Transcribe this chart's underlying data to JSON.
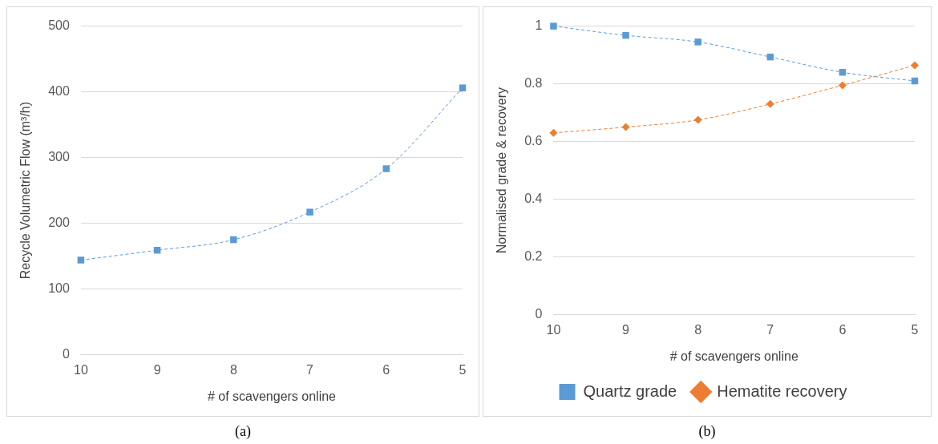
{
  "chart_data": [
    {
      "type": "line",
      "xlabel": "# of scavengers online",
      "ylabel": "Recycle Volumetric Flow (m³/h)",
      "categories": [
        "10",
        "9",
        "8",
        "7",
        "6",
        "5"
      ],
      "series": [
        {
          "color": "#5b9bd5",
          "values": [
            144,
            159,
            175,
            217,
            283,
            406
          ]
        }
      ],
      "ylim": [
        0,
        500
      ],
      "yticks": [
        0,
        100,
        200,
        300,
        400,
        500
      ],
      "grid": "y",
      "legend": false,
      "marker": "square",
      "line_style": "dashed",
      "annotations": [
        "(a)"
      ]
    },
    {
      "type": "line",
      "xlabel": "# of scavengers online",
      "ylabel": "Normalised grade & recovery",
      "categories": [
        "10",
        "9",
        "8",
        "7",
        "6",
        "5"
      ],
      "series": [
        {
          "name": "Quartz grade",
          "color": "#5b9bd5",
          "marker": "square",
          "values": [
            1.0,
            0.968,
            0.945,
            0.893,
            0.84,
            0.81
          ]
        },
        {
          "name": "Hematite recovery",
          "color": "#ed7d31",
          "marker": "diamond",
          "values": [
            0.63,
            0.65,
            0.675,
            0.73,
            0.795,
            0.864
          ]
        }
      ],
      "ylim": [
        0,
        1
      ],
      "yticks": [
        0,
        0.2,
        0.4,
        0.6,
        0.8,
        1
      ],
      "grid": "y",
      "legend": "bottom",
      "line_style": "dashed",
      "annotations": [
        "(b)"
      ]
    }
  ]
}
